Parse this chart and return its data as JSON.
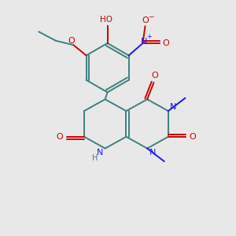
{
  "bg_color": "#e8e8e8",
  "bond_color": "#3d8080",
  "bond_lw": 1.4,
  "atom_colors": {
    "O": "#cc0000",
    "N": "#1a1aee",
    "C": "#3d8080",
    "H": "#3d8080"
  },
  "figsize": [
    3.0,
    3.0
  ],
  "dpi": 100
}
